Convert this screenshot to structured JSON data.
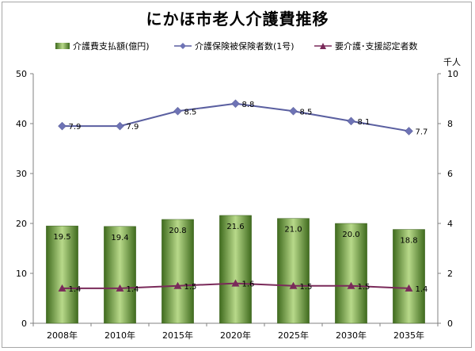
{
  "chart_data": {
    "type": "bar",
    "title": "にかほ市老人介護費推移",
    "categories": [
      "2008年",
      "2010年",
      "2015年",
      "2020年",
      "2025年",
      "2030年",
      "2035年"
    ],
    "series": [
      {
        "name": "介護費支払額(億円)",
        "type": "bar",
        "axis": "left",
        "values": [
          19.5,
          19.4,
          20.8,
          21.6,
          21.0,
          20.0,
          18.8
        ],
        "labels": [
          "19.5",
          "19.4",
          "20.8",
          "21.6",
          "21.0",
          "20.0",
          "18.8"
        ]
      },
      {
        "name": "介護保険被保険者数(1号)",
        "type": "line",
        "axis": "right",
        "values": [
          7.9,
          7.9,
          8.5,
          8.8,
          8.5,
          8.1,
          7.7
        ],
        "labels": [
          "7.9",
          "7.9",
          "8.5",
          "8.8",
          "8.5",
          "8.1",
          "7.7"
        ]
      },
      {
        "name": "要介護･支援認定者数",
        "type": "line",
        "axis": "right",
        "values": [
          1.4,
          1.4,
          1.5,
          1.6,
          1.5,
          1.5,
          1.4
        ],
        "labels": [
          "1.4",
          "1.4",
          "1.5",
          "1.6",
          "1.5",
          "1.5",
          "1.4"
        ]
      }
    ],
    "left_ticks": [
      "0",
      "10",
      "20",
      "30",
      "40",
      "50"
    ],
    "right_ticks": [
      "0",
      "2",
      "4",
      "6",
      "8",
      "10"
    ],
    "ylim_left": [
      0,
      50
    ],
    "ylim_right": [
      0,
      10
    ],
    "right_unit": "千人",
    "colors": {
      "bar_dark": "#3f6b1e",
      "bar_light": "#b8d98a",
      "line1": "#5a5fa0",
      "line1_marker": "#6e73b5",
      "line2": "#7a2a5a",
      "line2_marker": "#7a2a5a"
    },
    "legend_position": "top",
    "grid": false
  }
}
